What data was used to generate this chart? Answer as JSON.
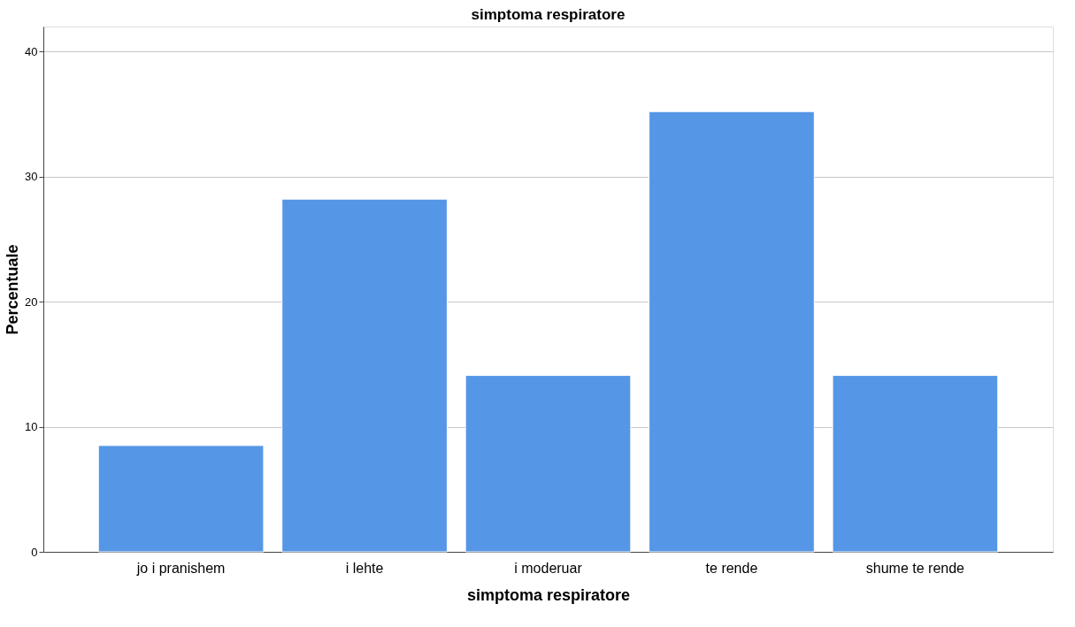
{
  "chart_data": {
    "type": "bar",
    "title": "simptoma respiratore",
    "xlabel": "simptoma respiratore",
    "ylabel": "Percentuale",
    "categories": [
      "jo i pranishem",
      "i lehte",
      "i moderuar",
      "te rende",
      "shume te rende"
    ],
    "values": [
      8.5,
      28.2,
      14.1,
      35.2,
      14.1
    ],
    "color": "#5596e6",
    "ylim": [
      0,
      42
    ],
    "yticks": [
      0,
      10,
      20,
      30,
      40
    ],
    "grid": "y"
  }
}
